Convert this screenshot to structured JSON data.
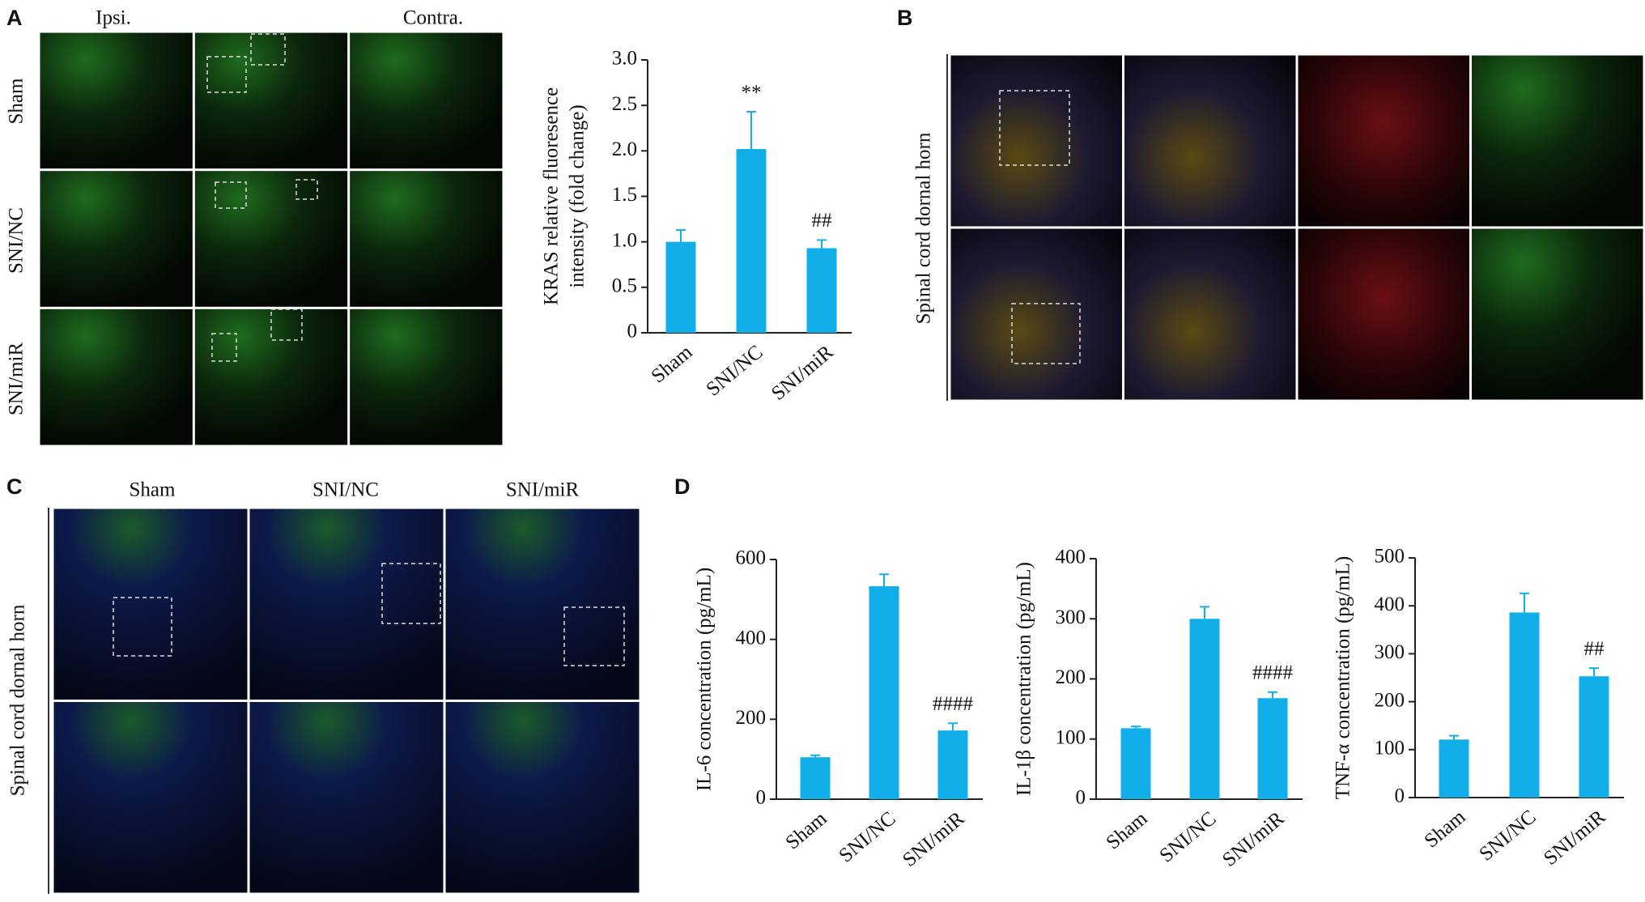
{
  "panels": {
    "A": {
      "label": "A",
      "columns": [
        "Ipsi.",
        "Contra."
      ],
      "rows": [
        "Sham",
        "SNI/NC",
        "SNI/miR"
      ]
    },
    "B": {
      "label": "B",
      "side_label": "Spinal cord dornal horn"
    },
    "C": {
      "label": "C",
      "columns": [
        "Sham",
        "SNI/NC",
        "SNI/miR"
      ],
      "side_label": "Spinal cord dornal horn"
    },
    "D": {
      "label": "D"
    }
  },
  "chart_data": [
    {
      "type": "bar",
      "ylabel": [
        "KRAS relative fluoresence",
        "intensity (fold change)"
      ],
      "categories": [
        "Sham",
        "SNI/NC",
        "SNI/miR"
      ],
      "values": [
        1.0,
        2.02,
        0.93
      ],
      "errors": [
        0.13,
        0.41,
        0.09
      ],
      "color": "#12aeea",
      "annotations": [
        {
          "category": "SNI/NC",
          "text": "**"
        },
        {
          "category": "SNI/miR",
          "text": "##"
        }
      ],
      "ylim": [
        0,
        3
      ],
      "yticks": [
        0,
        0.5,
        {
          "value": 1,
          "label": "1.0"
        },
        1.5,
        {
          "value": 2,
          "label": "2.0"
        },
        2.5,
        {
          "value": 3,
          "label": "3.0"
        }
      ]
    },
    {
      "type": "bar",
      "ylabel": [
        "IL-6 concentration (pg/mL)"
      ],
      "categories": [
        "Sham",
        "SNI/NC",
        "SNI/miR"
      ],
      "values": [
        105,
        533,
        172
      ],
      "errors": [
        5,
        30,
        18
      ],
      "color": "#12aeea",
      "annotations": [
        {
          "category": "SNI/miR",
          "text": "####"
        }
      ],
      "ylim": [
        0,
        600
      ],
      "yticks": [
        0,
        200,
        400,
        600
      ]
    },
    {
      "type": "bar",
      "ylabel": [
        "IL-1β concentration (pg/mL)"
      ],
      "categories": [
        "Sham",
        "SNI/NC",
        "SNI/miR"
      ],
      "values": [
        118,
        300,
        168
      ],
      "errors": [
        3,
        20,
        10
      ],
      "color": "#12aeea",
      "annotations": [
        {
          "category": "SNI/miR",
          "text": "####"
        }
      ],
      "ylim": [
        0,
        400
      ],
      "yticks": [
        0,
        100,
        200,
        300,
        400
      ]
    },
    {
      "type": "bar",
      "ylabel": [
        "TNF-α concentration (pg/mL)"
      ],
      "categories": [
        "Sham",
        "SNI/NC",
        "SNI/miR"
      ],
      "values": [
        121,
        386,
        253
      ],
      "errors": [
        8,
        40,
        17
      ],
      "color": "#12aeea",
      "annotations": [
        {
          "category": "SNI/miR",
          "text": "##"
        }
      ],
      "ylim": [
        0,
        500
      ],
      "yticks": [
        0,
        100,
        200,
        300,
        400,
        500
      ]
    }
  ]
}
